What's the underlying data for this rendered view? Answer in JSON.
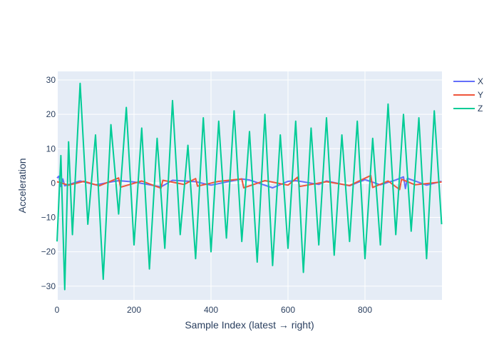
{
  "chart_data": {
    "type": "line",
    "xlabel": "Sample Index (latest → right)",
    "ylabel": "Acceleration",
    "xlim": [
      0,
      1000
    ],
    "ylim": [
      -34,
      32.5
    ],
    "x_ticks": [
      0,
      200,
      400,
      600,
      800
    ],
    "y_ticks": [
      -30,
      -20,
      -10,
      0,
      10,
      20,
      30
    ],
    "grid": true,
    "plot_background": "#e5ecf6",
    "legend_position": "top-right",
    "series": [
      {
        "name": "X",
        "color": "#636efa",
        "x": [
          0,
          5,
          10,
          15,
          20,
          60,
          100,
          160,
          200,
          270,
          300,
          360,
          400,
          480,
          500,
          560,
          600,
          620,
          680,
          700,
          760,
          800,
          840,
          880,
          900,
          905,
          910,
          960,
          999
        ],
        "values": [
          1.5,
          2.0,
          -1.0,
          1.2,
          -0.8,
          0.6,
          -0.5,
          0.7,
          0.3,
          -1.1,
          0.8,
          0.4,
          -0.6,
          1.2,
          0.9,
          -1.4,
          0.5,
          0.7,
          -0.4,
          0.6,
          -0.8,
          1.0,
          -0.5,
          0.9,
          1.8,
          -1.6,
          1.4,
          -0.6,
          0.5
        ]
      },
      {
        "name": "Y",
        "color": "#ef553b",
        "x": [
          0,
          30,
          70,
          110,
          160,
          165,
          220,
          270,
          275,
          330,
          360,
          365,
          420,
          480,
          485,
          540,
          600,
          625,
          630,
          700,
          760,
          815,
          820,
          860,
          890,
          895,
          930,
          999
        ],
        "values": [
          0.4,
          -0.6,
          0.5,
          -0.8,
          1.5,
          -1.2,
          0.6,
          -1.5,
          0.8,
          -0.4,
          1.3,
          -0.9,
          0.5,
          1.2,
          -1.4,
          0.7,
          -0.6,
          1.7,
          -1.0,
          0.4,
          -0.7,
          2.2,
          -1.3,
          0.6,
          -1.9,
          1.1,
          -0.5,
          0.3
        ]
      },
      {
        "name": "Z",
        "color": "#00cc96",
        "x": [
          0,
          10,
          20,
          30,
          40,
          60,
          80,
          100,
          120,
          140,
          160,
          180,
          200,
          220,
          240,
          260,
          280,
          300,
          320,
          340,
          360,
          380,
          400,
          420,
          440,
          460,
          480,
          500,
          520,
          540,
          560,
          580,
          600,
          620,
          640,
          660,
          680,
          700,
          720,
          740,
          760,
          780,
          800,
          820,
          840,
          860,
          880,
          900,
          920,
          940,
          960,
          980,
          999
        ],
        "values": [
          -17,
          8,
          -31,
          12,
          -15,
          29,
          -12,
          14,
          -28,
          17,
          -9,
          22,
          -18,
          16,
          -25,
          13,
          -19,
          24,
          -15,
          11,
          -22,
          19,
          -20,
          18,
          -16,
          21,
          -17,
          15,
          -23,
          20,
          -24,
          14,
          -19,
          18,
          -26,
          16,
          -18,
          19,
          -21,
          14,
          -17,
          18,
          -22,
          13,
          -18,
          23,
          -15,
          20,
          -14,
          19,
          -22,
          21,
          -12
        ]
      }
    ]
  }
}
